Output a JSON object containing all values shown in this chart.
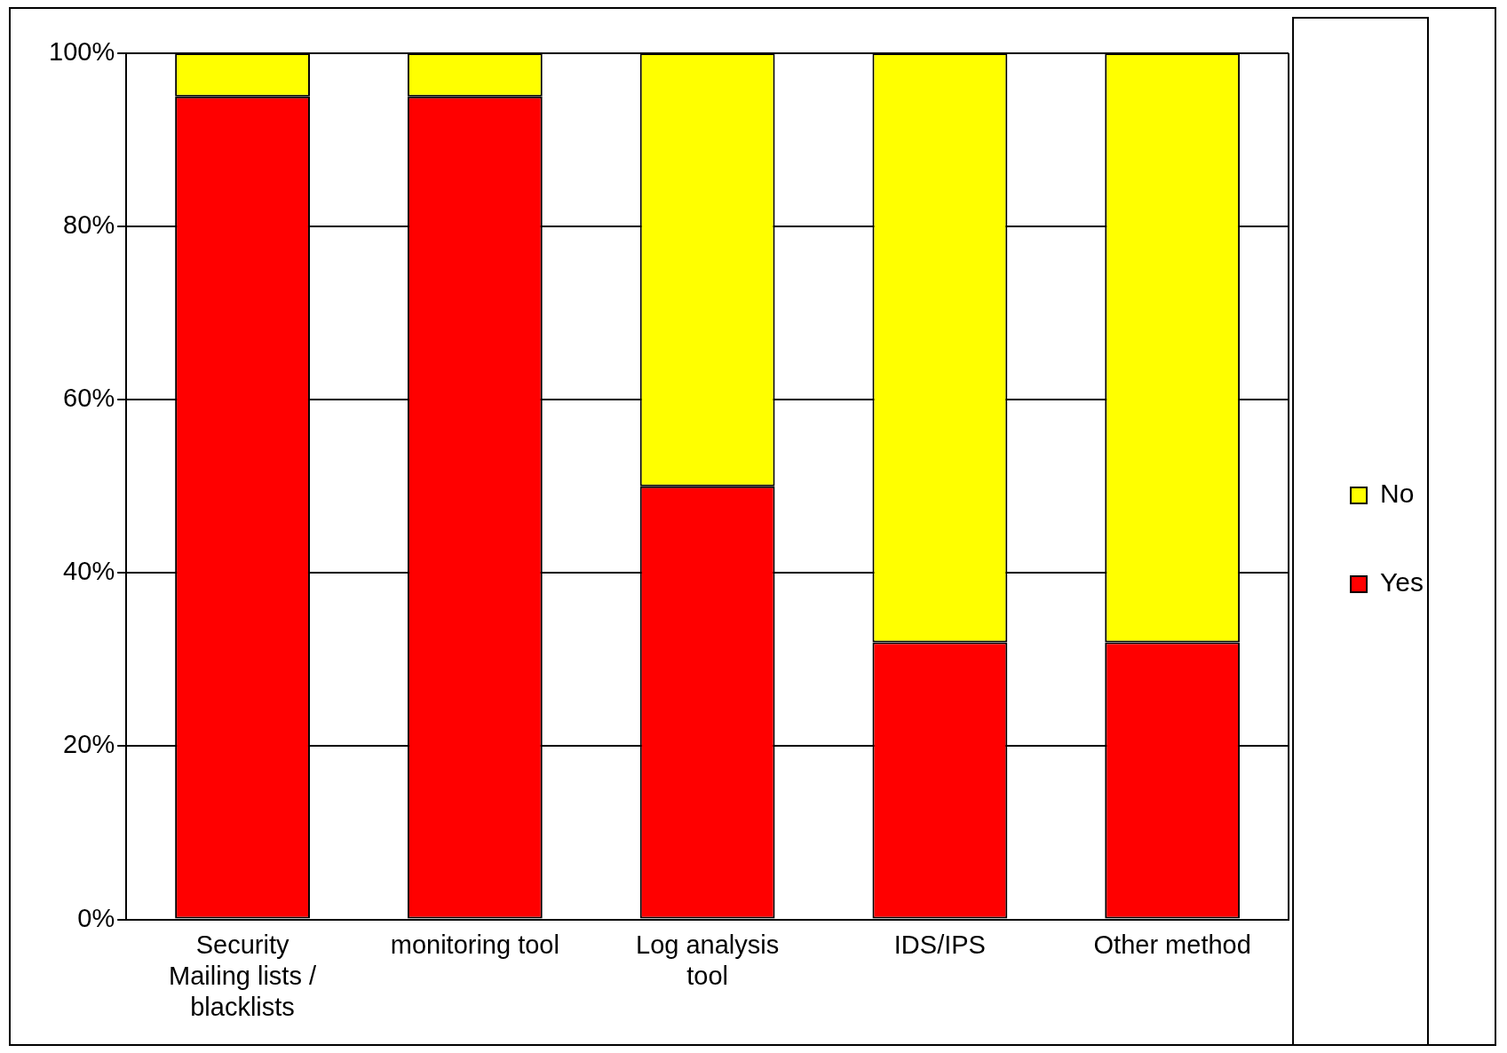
{
  "chart_data": {
    "type": "bar",
    "stacked": true,
    "categories": [
      "Security Mailing lists / blacklists",
      "monitoring tool",
      "Log analysis tool",
      "IDS/IPS",
      "Other method"
    ],
    "series": [
      {
        "name": "Yes",
        "color": "#ff0000",
        "values": [
          95,
          95,
          50,
          32,
          32
        ]
      },
      {
        "name": "No",
        "color": "#ffff00",
        "values": [
          5,
          5,
          50,
          68,
          68
        ]
      }
    ],
    "ylim": [
      0,
      100
    ],
    "yticks": [
      {
        "value": 0,
        "label": "0%"
      },
      {
        "value": 20,
        "label": "20%"
      },
      {
        "value": 40,
        "label": "40%"
      },
      {
        "value": 60,
        "label": "60%"
      },
      {
        "value": 80,
        "label": "80%"
      },
      {
        "value": 100,
        "label": "100%"
      }
    ],
    "grid": "y",
    "legend": "right"
  }
}
